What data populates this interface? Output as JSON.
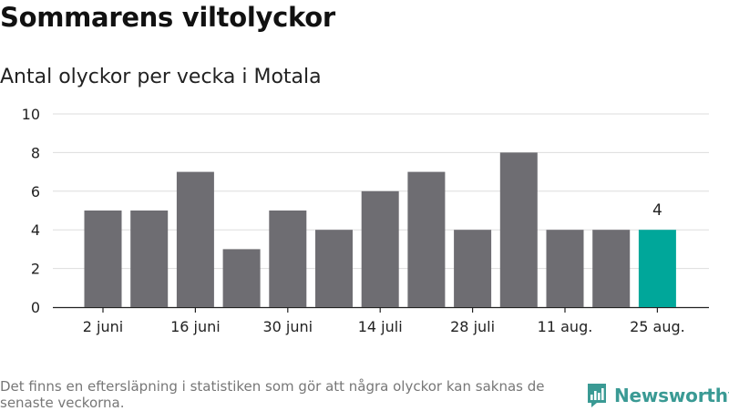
{
  "title": "Sommarens viltolyckor",
  "subtitle": "Antal olyckor per vecka i Motala",
  "note": "Det finns en eftersläpning i statistiken som gör att några olyckor kan saknas de senaste veckorna.",
  "brand": {
    "name": "Newsworthy",
    "icon": "newsworthy-logo-icon",
    "color": "#3a9a94"
  },
  "colors": {
    "bar": "#6e6d72",
    "highlight": "#00a79a",
    "grid": "#dddddd",
    "axis": "#222222"
  },
  "chart_data": {
    "type": "bar",
    "x": [
      "v1",
      "v2",
      "v3",
      "v4",
      "v5",
      "v6",
      "v7",
      "v8",
      "v9",
      "v10",
      "v11",
      "v12",
      "v13"
    ],
    "values": [
      5,
      5,
      7,
      3,
      5,
      4,
      6,
      7,
      4,
      8,
      4,
      4,
      4
    ],
    "tick_labels": [
      {
        "index": 0,
        "label": "2 juni"
      },
      {
        "index": 2,
        "label": "16 juni"
      },
      {
        "index": 4,
        "label": "30 juni"
      },
      {
        "index": 6,
        "label": "14 juli"
      },
      {
        "index": 8,
        "label": "28 juli"
      },
      {
        "index": 10,
        "label": "11 aug."
      },
      {
        "index": 12,
        "label": "25 aug."
      }
    ],
    "highlight_index": 12,
    "data_labels": [
      {
        "index": 12,
        "label": "4"
      }
    ],
    "ylim": [
      0,
      10
    ],
    "yticks": [
      0,
      2,
      4,
      6,
      8,
      10
    ],
    "grid": true
  }
}
